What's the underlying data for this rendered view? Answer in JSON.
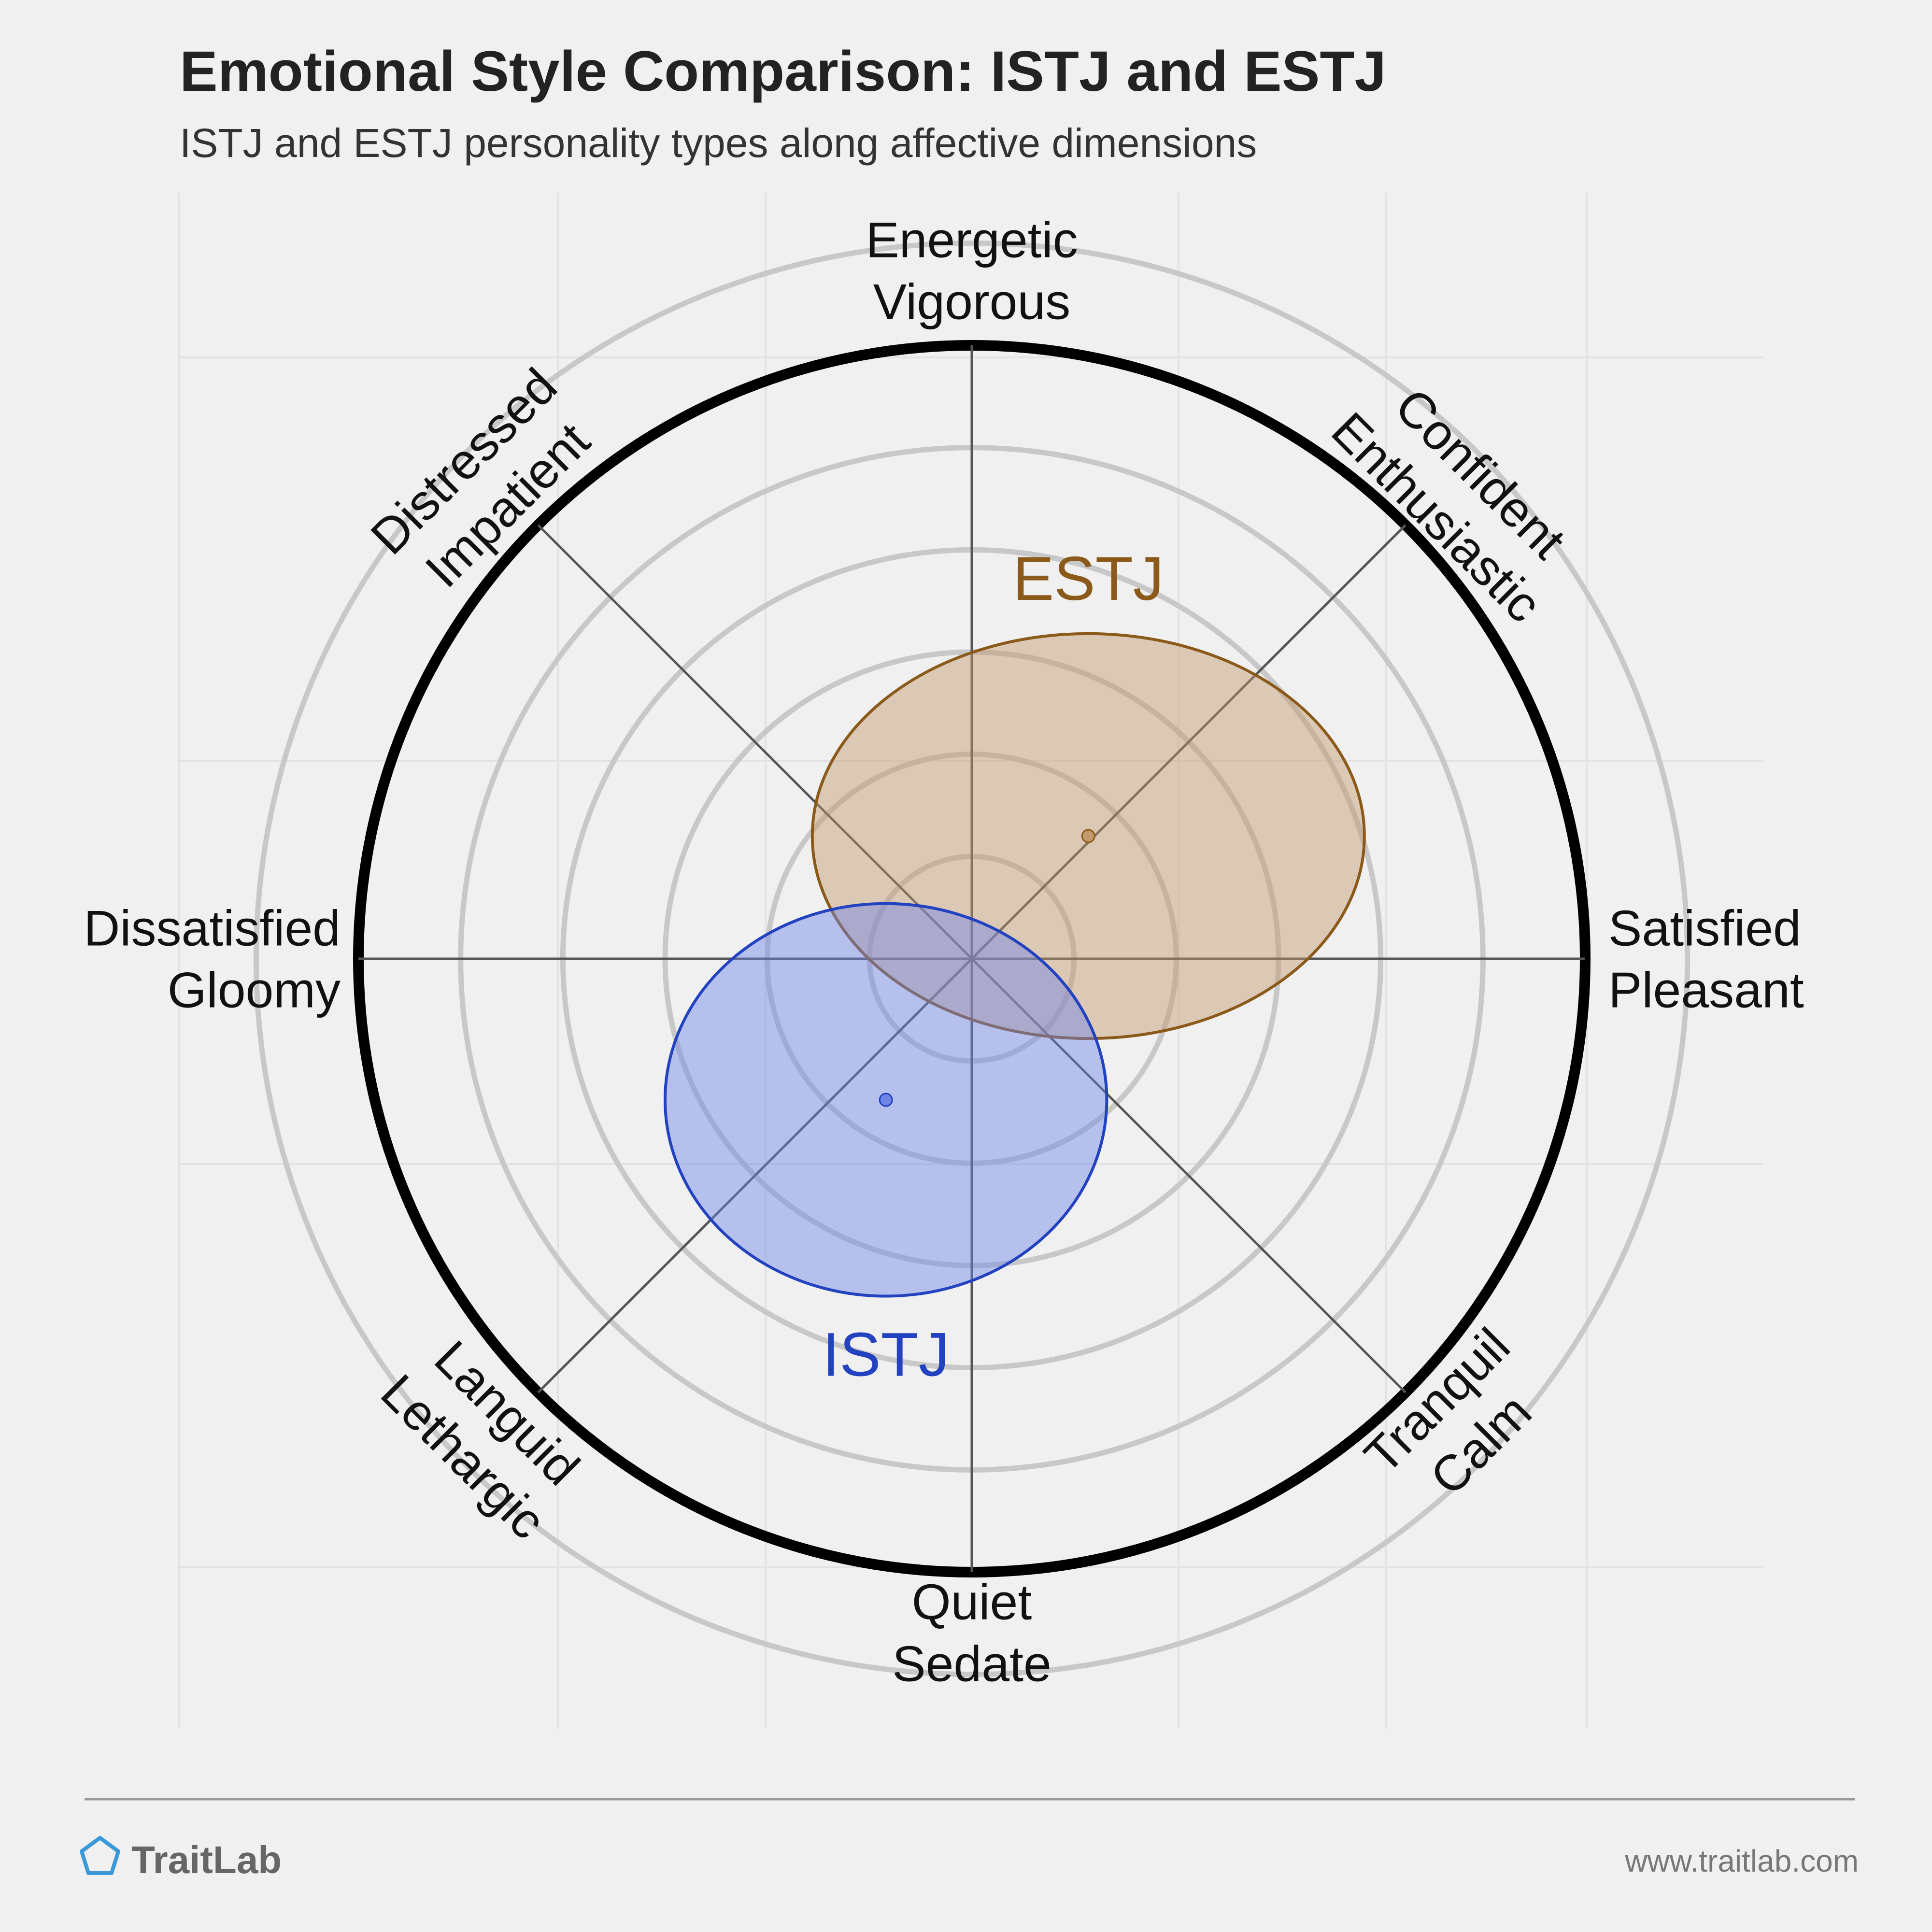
{
  "chart_data": {
    "type": "scatter",
    "title": "Emotional Style Comparison: ISTJ and ESTJ",
    "subtitle": "ISTJ and ESTJ personality types along affective dimensions",
    "axes": [
      {
        "direction": "top",
        "lines": [
          "Energetic",
          "Vigorous"
        ]
      },
      {
        "direction": "top-right",
        "lines": [
          "Confident",
          "Enthusiastic"
        ]
      },
      {
        "direction": "right",
        "lines": [
          "Satisfied",
          "Pleasant"
        ]
      },
      {
        "direction": "bottom-right",
        "lines": [
          "Tranquil",
          "Calm"
        ]
      },
      {
        "direction": "bottom",
        "lines": [
          "Quiet",
          "Sedate"
        ]
      },
      {
        "direction": "bottom-left",
        "lines": [
          "Languid",
          "Lethargic"
        ]
      },
      {
        "direction": "left",
        "lines": [
          "Dissatisfied",
          "Gloomy"
        ]
      },
      {
        "direction": "top-left",
        "lines": [
          "Distressed",
          "Impatient"
        ]
      }
    ],
    "xlim": [
      -1,
      1
    ],
    "ylim": [
      -1,
      1
    ],
    "grid": true,
    "series": [
      {
        "name": "ESTJ",
        "color": "#8b5a1a",
        "fill": "#c49a6c",
        "center": [
          0.19,
          0.2
        ],
        "spread": [
          0.45,
          0.33
        ]
      },
      {
        "name": "ISTJ",
        "color": "#2242c0",
        "fill": "#6f86e8",
        "center": [
          -0.14,
          -0.23
        ],
        "spread": [
          0.36,
          0.32
        ]
      }
    ]
  },
  "footer": {
    "brand": "TraitLab",
    "url": "www.traitlab.com"
  }
}
